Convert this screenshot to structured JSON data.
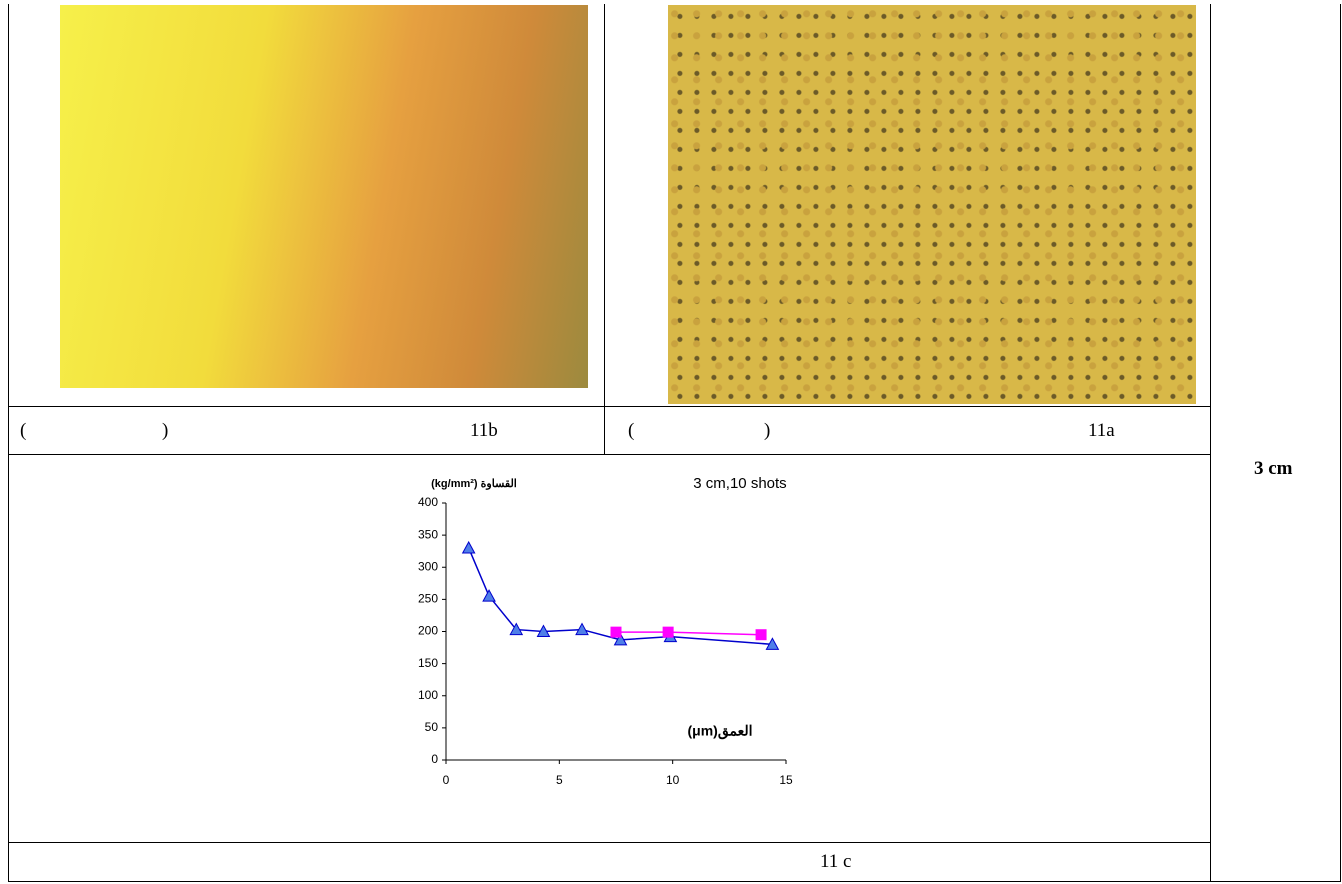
{
  "captions": [
    {
      "open": "(",
      "close": ")",
      "label": "11b"
    },
    {
      "open": "(",
      "close": ")",
      "label": "11a"
    }
  ],
  "side_label": "3 cm",
  "figure_label": "11 c",
  "chart_data": {
    "type": "line",
    "title": "3 cm,10 shots",
    "y_label": "القساوة (kg/mm²)",
    "x_label": "العمق(μm)",
    "xlim": [
      0,
      15
    ],
    "xticks": [
      0,
      5,
      10,
      15
    ],
    "ylim": [
      0,
      400
    ],
    "yticks": [
      0,
      50,
      100,
      150,
      200,
      250,
      300,
      350,
      400
    ],
    "series": [
      {
        "color": "#0000cc",
        "marker_color": "#4f7fe8",
        "marker": "triangle",
        "x": [
          1,
          1.9,
          3.1,
          4.3,
          6,
          7.7,
          9.9,
          14.4
        ],
        "values": [
          330,
          255,
          203,
          200,
          203,
          187,
          192,
          180
        ]
      },
      {
        "color": "#ff00ff",
        "marker_color": "#ff00ff",
        "marker": "square",
        "x": [
          7.5,
          9.8,
          13.9
        ],
        "values": [
          199,
          199,
          195
        ]
      }
    ]
  }
}
